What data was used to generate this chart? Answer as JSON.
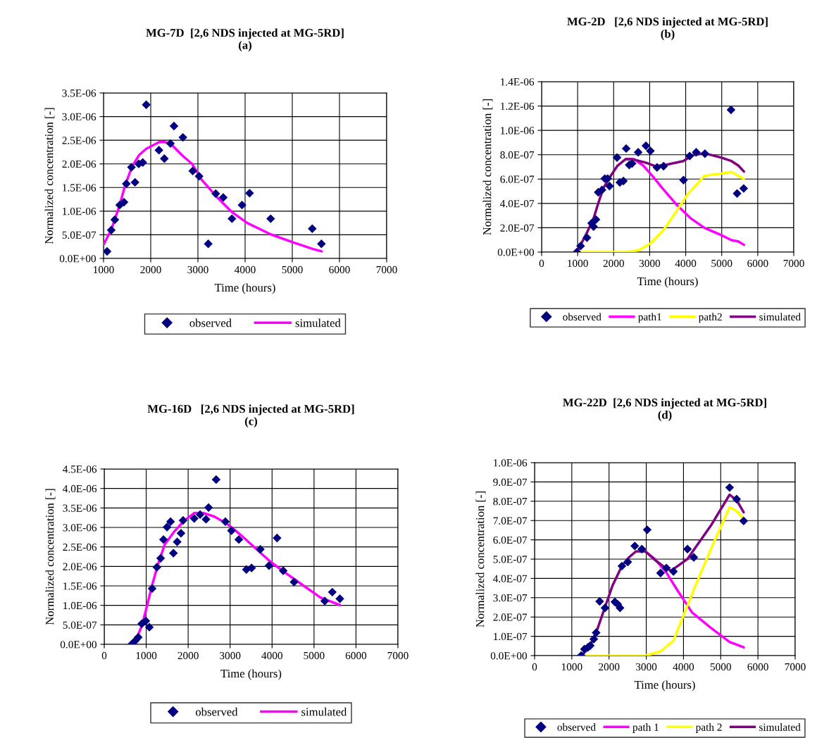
{
  "chart_data": [
    {
      "type": "line",
      "title": "MG-7D  [2,6 NDS injected at MG-5RD]",
      "subtitle": "(a)",
      "xlabel": "Time (hours)",
      "ylabel": "Normalized concentration [-]",
      "xlim": [
        1000,
        7000
      ],
      "xticks": [
        1000,
        2000,
        3000,
        4000,
        5000,
        6000,
        7000
      ],
      "ylim": [
        0,
        3.5e-06
      ],
      "yticks": [
        {
          "value": 0,
          "label": "0.0E+00"
        },
        {
          "value": 5e-07,
          "label": "5.0E-07"
        },
        {
          "value": 1e-06,
          "label": "1.0E-06"
        },
        {
          "value": 1.5e-06,
          "label": "1.5E-06"
        },
        {
          "value": 2e-06,
          "label": "2.0E-06"
        },
        {
          "value": 2.5e-06,
          "label": "2.5E-06"
        },
        {
          "value": 3e-06,
          "label": "3.0E-06"
        },
        {
          "value": 3.5e-06,
          "label": "3.5E-06"
        }
      ],
      "grid": true,
      "legend": "bottom",
      "series": [
        {
          "name": "observed",
          "type": "scatter",
          "marker": "diamond",
          "color": "#000080",
          "x": [
            1075,
            1164,
            1239,
            1343,
            1433,
            1483,
            1592,
            1667,
            1746,
            1831,
            1905,
            2174,
            2289,
            2418,
            2493,
            2682,
            2891,
            3025,
            3219,
            3378,
            3537,
            3721,
            3935,
            4095,
            4542,
            5423,
            5617
          ],
          "values": [
            1.5e-07,
            6e-07,
            8.2e-07,
            1.13e-06,
            1.19e-06,
            1.58e-06,
            1.93e-06,
            1.61e-06,
            2e-06,
            2.03e-06,
            3.25e-06,
            2.29e-06,
            2.11e-06,
            2.43e-06,
            2.8e-06,
            2.56e-06,
            1.85e-06,
            1.74e-06,
            3.1e-07,
            1.37e-06,
            1.29e-06,
            8.4e-07,
            1.13e-06,
            1.38e-06,
            8.4e-07,
            6.3e-07,
            3.1e-07
          ]
        },
        {
          "name": "simulated",
          "type": "line",
          "color": "#ff00ff",
          "x": [
            1000,
            1164,
            1333,
            1458,
            1607,
            1756,
            1905,
            2179,
            2303,
            2428,
            2677,
            2876,
            3075,
            3373,
            3721,
            4045,
            4542,
            5015,
            5438,
            5622
          ],
          "values": [
            2.9e-07,
            6.1e-07,
            1.1e-06,
            1.55e-06,
            1.95e-06,
            2.19e-06,
            2.32e-06,
            2.46e-06,
            2.46e-06,
            2.42e-06,
            2.17e-06,
            2e-06,
            1.67e-06,
            1.33e-06,
            9.8e-07,
            7.5e-07,
            5.1e-07,
            3.4e-07,
            2e-07,
            1.5e-07
          ]
        }
      ]
    },
    {
      "type": "line",
      "title": "MG-2D   [2,6 NDS injected at MG-5RD]",
      "subtitle": "(b)",
      "xlabel": "Time (hours)",
      "ylabel": "Normalized concentration [-]",
      "xlim": [
        0,
        7000
      ],
      "xticks": [
        0,
        1000,
        2000,
        3000,
        4000,
        5000,
        6000,
        7000
      ],
      "ylim": [
        0,
        1.4e-06
      ],
      "yticks": [
        {
          "value": 0,
          "label": "0.0E+00"
        },
        {
          "value": 2e-07,
          "label": "2.0E-07"
        },
        {
          "value": 4e-07,
          "label": "4.0E-07"
        },
        {
          "value": 6e-07,
          "label": "6.0E-07"
        },
        {
          "value": 8e-07,
          "label": "8.0E-07"
        },
        {
          "value": 1e-06,
          "label": "1.0E-06"
        },
        {
          "value": 1.2e-06,
          "label": "1.2E-06"
        },
        {
          "value": 1.4e-06,
          "label": "1.4E-06"
        }
      ],
      "grid": true,
      "legend": "bottom",
      "series": [
        {
          "name": "observed",
          "type": "scatter",
          "marker": "diamond",
          "color": "#000080",
          "x": [
            978,
            1083,
            1259,
            1389,
            1442,
            1507,
            1572,
            1676,
            1755,
            1833,
            1885,
            2094,
            2172,
            2270,
            2348,
            2433,
            2511,
            2681,
            2896,
            3020,
            3203,
            3386,
            3940,
            4110,
            4292,
            4534,
            5258,
            5427,
            5610
          ],
          "values": [
            0,
            5e-08,
            1.18e-07,
            2.37e-07,
            2.1e-07,
            2.68e-07,
            4.92e-07,
            5.11e-07,
            6.04e-07,
            6.04e-07,
            5.42e-07,
            7.77e-07,
            5.73e-07,
            5.84e-07,
            8.51e-07,
            7.16e-07,
            7.27e-07,
            8.2e-07,
            8.74e-07,
            8.31e-07,
            6.96e-07,
            7.06e-07,
            5.92e-07,
            7.89e-07,
            8.2e-07,
            8.08e-07,
            1.169e-06,
            4.82e-07,
            5.23e-07
          ]
        },
        {
          "name": "path1",
          "type": "line",
          "color": "#ff00ff",
          "x": [
            2335,
            2563,
            2824,
            3085,
            3346,
            3738,
            4129,
            4521,
            4977,
            5271,
            5466,
            5617
          ],
          "values": [
            7.64e-07,
            7.64e-07,
            7.1e-07,
            6.23e-07,
            5.27e-07,
            3.92e-07,
            2.8e-07,
            1.99e-07,
            1.41e-07,
            9.8e-08,
            8.7e-08,
            6e-08
          ]
        },
        {
          "name": "path2",
          "type": "line",
          "color": "#ffff00",
          "x": [
            978,
            2335,
            2694,
            3020,
            3379,
            3738,
            4064,
            4521,
            5271,
            5617
          ],
          "values": [
            0,
            0,
            1.5e-08,
            7.1e-08,
            1.79e-07,
            3.34e-07,
            4.78e-07,
            6.27e-07,
            6.58e-07,
            6e-07
          ]
        },
        {
          "name": "simulated",
          "type": "line",
          "color": "#800080",
          "x": [
            978,
            1259,
            1442,
            1572,
            1716,
            1911,
            2107,
            2335,
            2498,
            2890,
            3151,
            3477,
            3934,
            4194,
            4521,
            4977,
            5271,
            5466,
            5617
          ],
          "values": [
            0,
            1.6e-07,
            2.76e-07,
            4.01e-07,
            5.27e-07,
            6.23e-07,
            7.1e-07,
            7.64e-07,
            7.64e-07,
            7.35e-07,
            7.06e-07,
            7.19e-07,
            7.48e-07,
            7.97e-07,
            8.12e-07,
            7.77e-07,
            7.48e-07,
            7.1e-07,
            6.62e-07
          ]
        }
      ]
    },
    {
      "type": "line",
      "title": "MG-16D   [2,6 NDS injected at MG-5RD]",
      "subtitle": "(c)",
      "xlabel": "Time (hours)",
      "ylabel": "Normalized concentration [-]",
      "xlim": [
        0,
        7000
      ],
      "xticks": [
        0,
        1000,
        2000,
        3000,
        4000,
        5000,
        6000,
        7000
      ],
      "ylim": [
        0,
        4.5e-06
      ],
      "yticks": [
        {
          "value": 0,
          "label": "0.0E+00"
        },
        {
          "value": 5e-07,
          "label": "5.0E-07"
        },
        {
          "value": 1e-06,
          "label": "1.0E-06"
        },
        {
          "value": 1.5e-06,
          "label": "1.5E-06"
        },
        {
          "value": 2e-06,
          "label": "2.0E-06"
        },
        {
          "value": 2.5e-06,
          "label": "2.5E-06"
        },
        {
          "value": 3e-06,
          "label": "3.0E-06"
        },
        {
          "value": 3.5e-06,
          "label": "3.5E-06"
        },
        {
          "value": 4e-06,
          "label": "4.0E-06"
        },
        {
          "value": 4.5e-06,
          "label": "4.5E-06"
        }
      ],
      "grid": true,
      "legend": "bottom",
      "series": [
        {
          "name": "observed",
          "type": "scatter",
          "marker": "diamond",
          "color": "#000080",
          "x": [
            653,
            737,
            810,
            895,
            990,
            1075,
            1142,
            1255,
            1345,
            1412,
            1497,
            1581,
            1649,
            1739,
            1829,
            1880,
            2144,
            2285,
            2426,
            2487,
            2667,
            2887,
            3033,
            3208,
            3388,
            3512,
            3720,
            3928,
            4119,
            4266,
            4524,
            5256,
            5436,
            5616
          ],
          "values": [
            0,
            9e-08,
            1.8e-07,
            5.3e-07,
            6e-07,
            4.4e-07,
            1.43e-06,
            1.98e-06,
            2.21e-06,
            2.69e-06,
            3.01e-06,
            3.15e-06,
            2.34e-06,
            2.63e-06,
            2.85e-06,
            3.18e-06,
            3.23e-06,
            3.33e-06,
            3.21e-06,
            3.51e-06,
            4.23e-06,
            3.15e-06,
            2.92e-06,
            2.69e-06,
            1.92e-06,
            1.96e-06,
            2.44e-06,
            2.02e-06,
            2.73e-06,
            1.89e-06,
            1.6e-06,
            1.11e-06,
            1.34e-06,
            1.17e-06
          ]
        },
        {
          "name": "simulated",
          "type": "line",
          "color": "#ff00ff",
          "x": [
            653,
            793,
            906,
            1019,
            1131,
            1272,
            1441,
            1666,
            1891,
            2144,
            2369,
            2622,
            2904,
            3129,
            3354,
            3692,
            3973,
            4311,
            4705,
            5155,
            5616
          ],
          "values": [
            0,
            2.1e-07,
            5.1e-07,
            9.9e-07,
            1.48e-06,
            2.02e-06,
            2.56e-06,
            2.89e-06,
            3.16e-06,
            3.37e-06,
            3.37e-06,
            3.28e-06,
            3.11e-06,
            2.92e-06,
            2.71e-06,
            2.38e-06,
            2.11e-06,
            1.84e-06,
            1.54e-06,
            1.2e-06,
            1.01e-06
          ]
        }
      ]
    },
    {
      "type": "line",
      "title": "MG-22D  [2,6 NDS injected at MG-5RD]",
      "subtitle": "(d)",
      "xlabel": "Time (hours)",
      "ylabel": "Normalized concentration [-]",
      "xlim": [
        0,
        7000
      ],
      "xticks": [
        0,
        1000,
        2000,
        3000,
        4000,
        5000,
        6000,
        7000
      ],
      "ylim": [
        0,
        1e-06
      ],
      "yticks": [
        {
          "value": 0,
          "label": "0.0E+00"
        },
        {
          "value": 1e-07,
          "label": "1.0E-07"
        },
        {
          "value": 2e-07,
          "label": "2.0E-07"
        },
        {
          "value": 3e-07,
          "label": "3.0E-07"
        },
        {
          "value": 4e-07,
          "label": "4.0E-07"
        },
        {
          "value": 5e-07,
          "label": "5.0E-07"
        },
        {
          "value": 6e-07,
          "label": "6.0E-07"
        },
        {
          "value": 7e-07,
          "label": "7.0E-07"
        },
        {
          "value": 8e-07,
          "label": "8.0E-07"
        },
        {
          "value": 9e-07,
          "label": "9.0E-07"
        },
        {
          "value": 1e-06,
          "label": "1.0E-06"
        }
      ],
      "grid": true,
      "legend": "bottom",
      "series": [
        {
          "name": "observed",
          "type": "scatter",
          "marker": "diamond",
          "color": "#000080",
          "x": [
            1252,
            1340,
            1434,
            1497,
            1591,
            1654,
            1748,
            1893,
            2157,
            2233,
            2296,
            2346,
            2503,
            2692,
            2881,
            3025,
            3384,
            3541,
            3730,
            4107,
            4277,
            5239,
            5428,
            5616
          ],
          "values": [
            0,
            3.4e-08,
            4.3e-08,
            5.2e-08,
            8.6e-08,
            1.19e-07,
            2.81e-07,
            2.47e-07,
            2.78e-07,
            2.66e-07,
            2.47e-07,
            4.64e-07,
            4.85e-07,
            5.68e-07,
            5.52e-07,
            6.52e-07,
            4.28e-07,
            4.54e-07,
            4.36e-07,
            5.52e-07,
            5.09e-07,
            8.71e-07,
            8.11e-07,
            6.98e-07
          ]
        },
        {
          "name": "path 1",
          "type": "line",
          "color": "#ff00ff",
          "x": [
            2975,
            3226,
            3541,
            3855,
            4233,
            4736,
            5239,
            5616
          ],
          "values": [
            5.4e-07,
            5.01e-07,
            4.3e-07,
            3.33e-07,
            2.23e-07,
            1.44e-07,
            7.1e-08,
            4.3e-08
          ]
        },
        {
          "name": "path 2",
          "type": "line",
          "color": "#ffff00",
          "x": [
            1252,
            2975,
            3384,
            3730,
            3981,
            4296,
            4736,
            5239,
            5428,
            5616
          ],
          "values": [
            0,
            0,
            2.2e-08,
            7.7e-08,
            1.99e-07,
            3.51e-07,
            5.52e-07,
            7.69e-07,
            7.49e-07,
            7.08e-07
          ]
        },
        {
          "name": "simulated",
          "type": "line",
          "color": "#800080",
          "x": [
            1252,
            1465,
            1654,
            1906,
            2094,
            2346,
            2535,
            2723,
            2975,
            3226,
            3478,
            3667,
            3855,
            4107,
            4358,
            4736,
            5239,
            5428,
            5616
          ],
          "values": [
            0,
            4e-08,
            1.19e-07,
            2.59e-07,
            3.63e-07,
            4.64e-07,
            5.09e-07,
            5.4e-07,
            5.4e-07,
            4.97e-07,
            4.6e-07,
            4.4e-07,
            4.66e-07,
            5.01e-07,
            5.7e-07,
            6.74e-07,
            8.34e-07,
            8.05e-07,
            7.43e-07
          ]
        }
      ]
    }
  ]
}
